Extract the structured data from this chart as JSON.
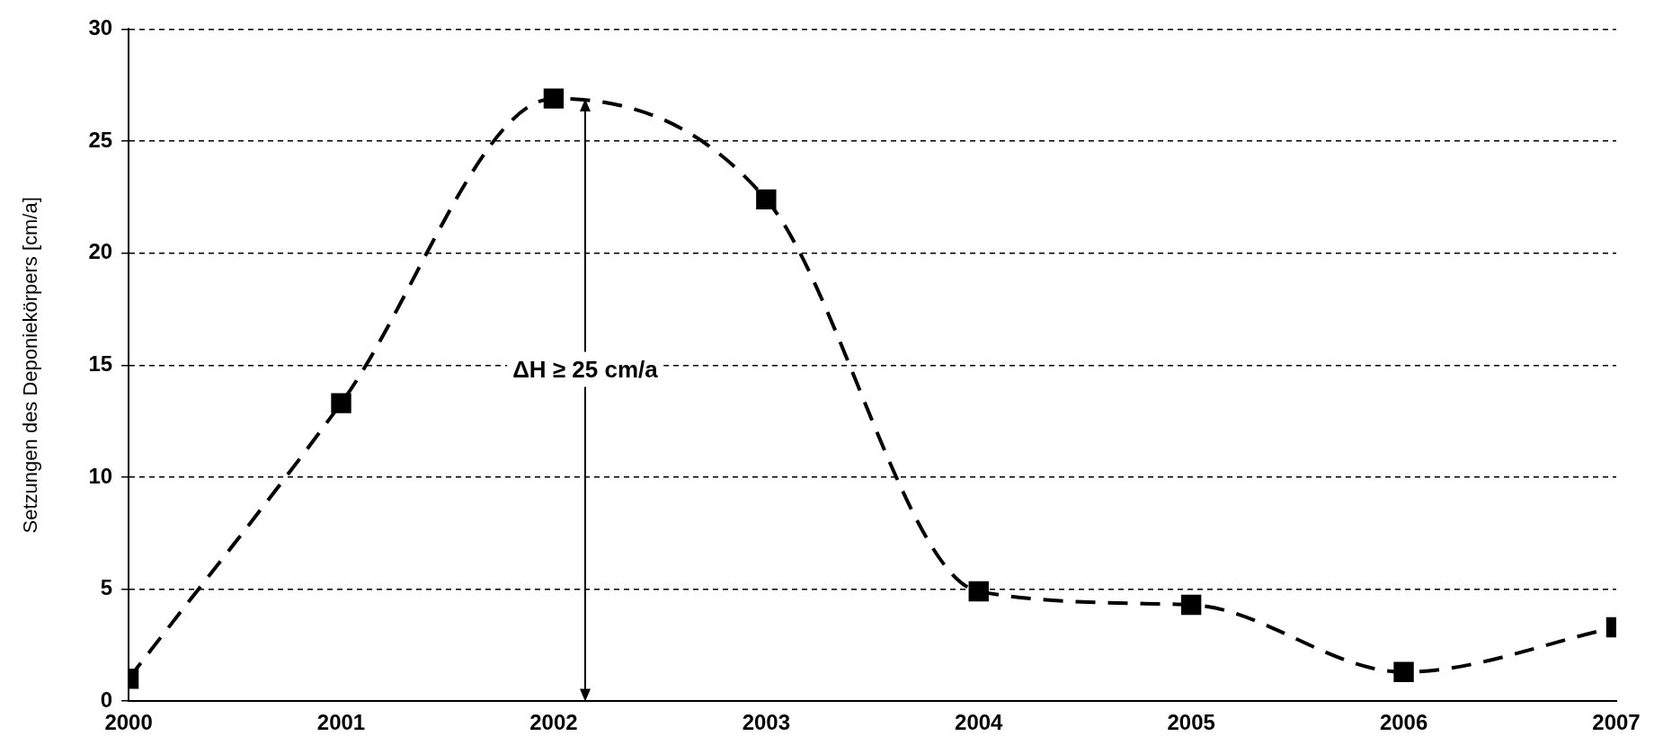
{
  "chart_data": {
    "type": "line",
    "ylabel": "Setzungen des Deponiekörpers [cm/a]",
    "x": [
      2000,
      2001,
      2002,
      2003,
      2004,
      2005,
      2006,
      2007
    ],
    "series": [
      {
        "color": "#000000",
        "values": [
          1,
          13.3,
          26.9,
          22.4,
          4.9,
          4.3,
          1.3,
          3.3
        ]
      }
    ],
    "xlim": [
      2000,
      2007
    ],
    "xticks": [
      2000,
      2001,
      2002,
      2003,
      2004,
      2005,
      2006,
      2007
    ],
    "ylim": [
      0,
      30
    ],
    "yticks": [
      0,
      5,
      10,
      15,
      20,
      25,
      30
    ],
    "grid": "y",
    "marker": "square",
    "line_style": "dashed",
    "legend": false,
    "annotations": [
      "ΔH ≥ 25 cm/a"
    ]
  }
}
